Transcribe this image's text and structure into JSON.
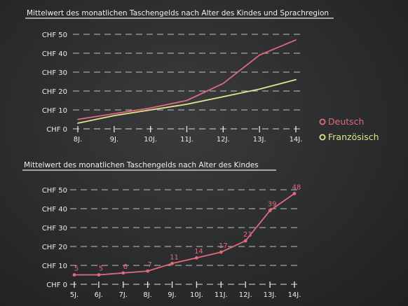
{
  "chart_data": [
    {
      "type": "line",
      "title": "Mittelwert des monatlichen Taschengelds nach Alter des Kindes und Sprachregion",
      "categories": [
        "8J.",
        "9J.",
        "10J.",
        "11J.",
        "12J.",
        "13J.",
        "14J."
      ],
      "yticks": [
        "CHF 0",
        "CHF 10",
        "CHF 20",
        "CHF 30",
        "CHF 40",
        "CHF 50"
      ],
      "ylim": [
        0,
        50
      ],
      "grid": true,
      "legend": "right",
      "series": [
        {
          "name": "Deutsch",
          "color": "#e06a7c",
          "values": [
            5,
            8,
            11,
            15,
            24,
            39,
            47
          ]
        },
        {
          "name": "Französisch",
          "color": "#e3e48e",
          "values": [
            3,
            7,
            10,
            13,
            17,
            21,
            26
          ]
        }
      ]
    },
    {
      "type": "line",
      "title": "Mittelwert des monatlichen Taschengelds nach Alter des Kindes",
      "categories": [
        "5J.",
        "6J.",
        "7J.",
        "8J.",
        "9J.",
        "10J.",
        "11J.",
        "12J.",
        "13J.",
        "14J."
      ],
      "yticks": [
        "CHF 0",
        "CHF 10",
        "CHF 20",
        "CHF 30",
        "CHF 40",
        "CHF 50"
      ],
      "ylim": [
        0,
        50
      ],
      "grid": true,
      "series": [
        {
          "color": "#e06a7c",
          "values": [
            5,
            5,
            6,
            7,
            11,
            14,
            17,
            23,
            39,
            48
          ]
        }
      ]
    }
  ]
}
